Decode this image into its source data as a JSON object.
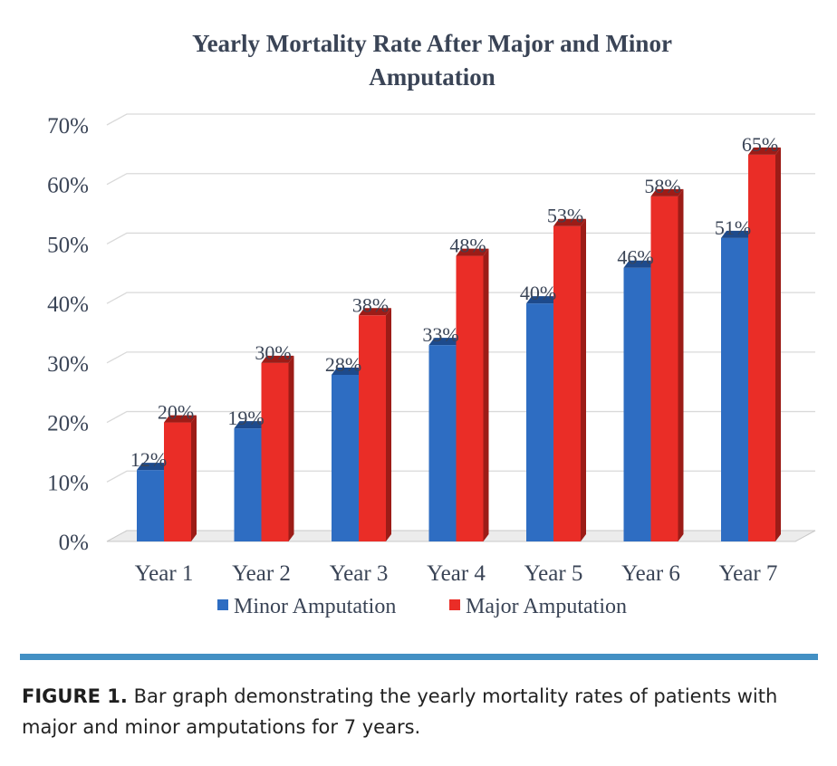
{
  "chart_data": {
    "type": "bar",
    "title_lines": [
      "Yearly Mortality Rate After Major and Minor",
      "Amputation"
    ],
    "categories": [
      "Year 1",
      "Year 2",
      "Year 3",
      "Year 4",
      "Year 5",
      "Year 6",
      "Year 7"
    ],
    "series": [
      {
        "name": "Minor Amputation",
        "values": [
          12,
          19,
          28,
          33,
          40,
          46,
          51
        ],
        "labels": [
          "12%",
          "19%",
          "28%",
          "33%",
          "40%",
          "46%",
          "51%"
        ],
        "color": "#2e6dc2",
        "shade": "#1d4a8c"
      },
      {
        "name": "Major Amputation",
        "values": [
          20,
          30,
          38,
          48,
          53,
          58,
          65
        ],
        "labels": [
          "20%",
          "30%",
          "38%",
          "48%",
          "53%",
          "58%",
          "65%"
        ],
        "color": "#ea2d27",
        "shade": "#9c1c17"
      }
    ],
    "ylim": [
      0,
      70
    ],
    "yticks": [
      0,
      10,
      20,
      30,
      40,
      50,
      60,
      70
    ],
    "ytick_labels": [
      "0%",
      "10%",
      "20%",
      "30%",
      "40%",
      "50%",
      "60%",
      "70%"
    ],
    "xlabel": "",
    "ylabel": "",
    "grid": true,
    "legend_position": "bottom",
    "style": "3d-bar"
  },
  "caption": {
    "label": "FIGURE 1.",
    "text": "Bar graph demonstrating the yearly mortality rates of patients with major and minor amputations for 7 years."
  },
  "colors": {
    "rule": "#4390c4",
    "grid": "#d9d9d9",
    "text": "#3a4456"
  }
}
